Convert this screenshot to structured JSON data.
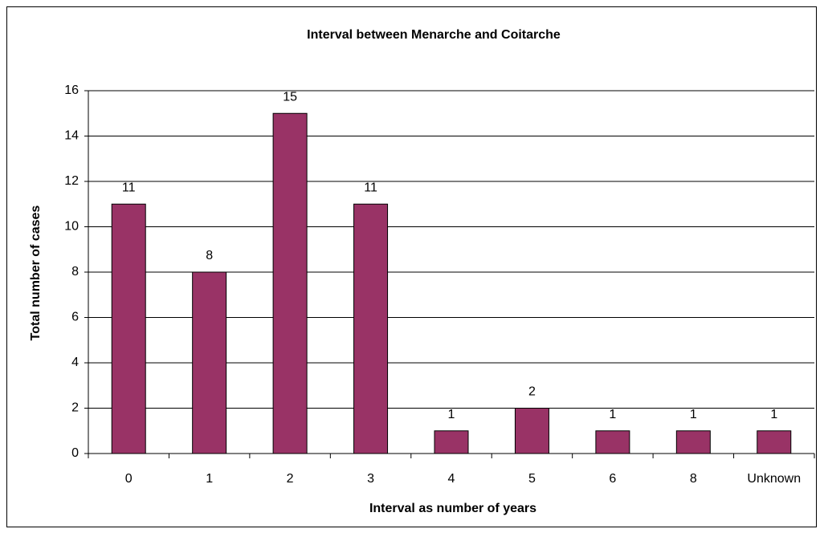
{
  "chart_data": {
    "type": "bar",
    "title": "Interval between Menarche and Coitarche",
    "x_label": "Interval as number of years",
    "y_label": "Total number of cases",
    "categories": [
      "0",
      "1",
      "2",
      "3",
      "4",
      "5",
      "6",
      "8",
      "Unknown"
    ],
    "values": [
      11,
      8,
      15,
      11,
      1,
      2,
      1,
      1,
      1
    ],
    "color": "#993366",
    "ylim": [
      0,
      16
    ],
    "yticks": [
      0,
      2,
      4,
      6,
      8,
      10,
      12,
      14,
      16
    ],
    "grid": true
  }
}
